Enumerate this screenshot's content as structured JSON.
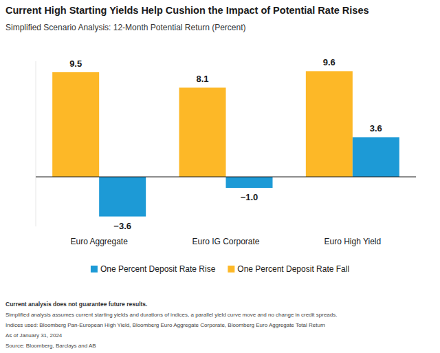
{
  "chart_data": {
    "type": "bar",
    "title": "Current High Starting Yields Help Cushion the Impact of Potential Rate Rises",
    "subtitle": "Simplified Scenario Analysis: 12-Month Potential Return (Percent)",
    "categories": [
      "Euro Aggregate",
      "Euro IG Corporate",
      "Euro High Yield"
    ],
    "series": [
      {
        "name": "One Percent Deposit Rate Fall",
        "color": "#fdb827",
        "values": [
          9.5,
          8.1,
          9.6
        ],
        "value_labels": [
          "9.5",
          "8.1",
          "9.6"
        ]
      },
      {
        "name": "One Percent Deposit Rate Rise",
        "color": "#1d9ad6",
        "values": [
          -3.6,
          -1.0,
          3.6
        ],
        "value_labels": [
          "−3.6",
          "−1.0",
          "3.6"
        ]
      }
    ],
    "ylim": [
      -4.5,
      10.5
    ],
    "yticks": [
      0
    ],
    "grid": false,
    "legend": "bottom",
    "data_labels": true,
    "tick_labels": "x",
    "disclaimer": "Current analysis does not guarantee future results.",
    "notes": [
      "Simplified analysis assumes current starting yields and durations of indices, a parallel yield curve move and no change in credit spreads.",
      "Indices used: Bloomberg Pan-European High Yield, Bloomberg Euro Aggregate Corporate, Bloomberg Euro Aggregate Total Return",
      "As of January 31, 2024",
      "Source: Bloomberg, Barclays and AB"
    ]
  }
}
